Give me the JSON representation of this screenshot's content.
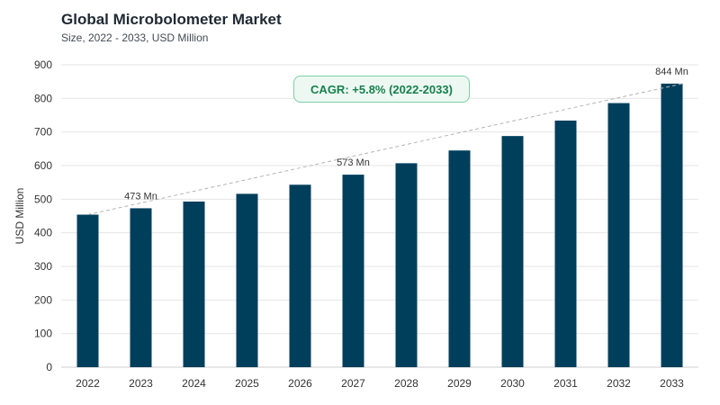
{
  "header": {
    "title": "Global Microbolometer Market",
    "subtitle": "Size, 2022 - 2033, USD Million"
  },
  "annotation": {
    "cagr": "CAGR: +5.8% (2022-2033)"
  },
  "colors": {
    "bar": "#003f5c",
    "trend": "#b5b5b5",
    "grid": "#e6e6e6",
    "cagr_border": "#7ccfa7",
    "cagr_text": "#16804e"
  },
  "chart_data": {
    "type": "bar",
    "ylabel": "USD Million",
    "xlabel": "",
    "ylim": [
      0,
      900
    ],
    "yticks": [
      0,
      100,
      200,
      300,
      400,
      500,
      600,
      700,
      800,
      900
    ],
    "grid": true,
    "categories": [
      "2022",
      "2023",
      "2024",
      "2025",
      "2026",
      "2027",
      "2028",
      "2029",
      "2030",
      "2031",
      "2032",
      "2033"
    ],
    "values": [
      454,
      473,
      493,
      516,
      543,
      573,
      607,
      645,
      688,
      734,
      786,
      844
    ],
    "data_labels": [
      {
        "category": "2023",
        "text": "473 Mn"
      },
      {
        "category": "2027",
        "text": "573 Mn"
      },
      {
        "category": "2033",
        "text": "844 Mn"
      }
    ],
    "trendline": {
      "from": "2022",
      "to": "2033",
      "style": "dashed"
    }
  }
}
